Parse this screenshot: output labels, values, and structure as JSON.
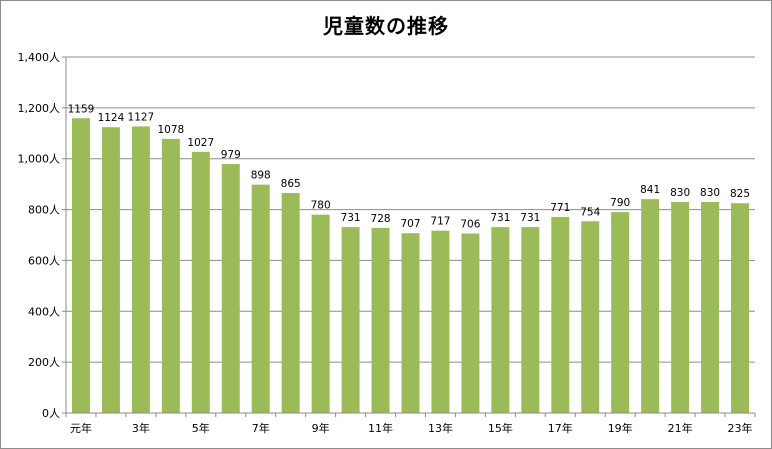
{
  "chart_data": {
    "type": "bar",
    "title": "児童数の推移",
    "xlabel": "",
    "ylabel": "",
    "ylim": [
      0,
      1400
    ],
    "y_ticks": [
      "0人",
      "200人",
      "400人",
      "600人",
      "800人",
      "1,000人",
      "1,200人",
      "1,400人"
    ],
    "x_tick_labels": [
      "元年",
      "",
      "3年",
      "",
      "5年",
      "",
      "7年",
      "",
      "9年",
      "",
      "11年",
      "",
      "13年",
      "",
      "15年",
      "",
      "17年",
      "",
      "19年",
      "",
      "21年",
      "",
      "23年"
    ],
    "values": [
      1159,
      1124,
      1127,
      1078,
      1027,
      979,
      898,
      865,
      780,
      731,
      728,
      707,
      717,
      706,
      731,
      731,
      771,
      754,
      790,
      841,
      830,
      830,
      825
    ],
    "bar_color": "#9bbb59",
    "grid": true,
    "legend": "none"
  }
}
